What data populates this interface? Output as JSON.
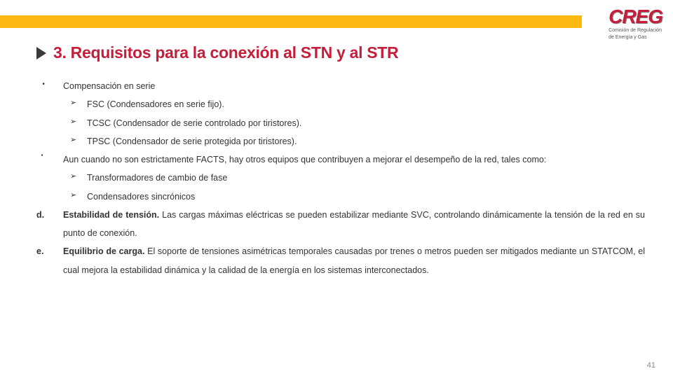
{
  "colors": {
    "accent": "#c41e3a",
    "bar": "#fdb813",
    "text": "#333333",
    "triangle": "#3a3a3a",
    "pagenum": "#888888"
  },
  "logo": {
    "main": "CREG",
    "sub1": "Comisión de Regulación",
    "sub2": "de Energía y Gas"
  },
  "title": "3. Requisitos para la conexión al STN y al STR",
  "items": {
    "b1": "Compensación en serie",
    "s1": "FSC (Condensadores en serie fijo).",
    "s2": "TCSC (Condensador de serie controlado por tiristores).",
    "s3": "TPSC (Condensador de serie protegida por tiristores).",
    "b2": "Aun cuando no son estrictamente FACTS, hay otros equipos que contribuyen a mejorar el desempeño de la red, tales como:",
    "s4": "Transformadores de cambio de fase",
    "s5": "Condensadores sincrónicos",
    "d_label": "d.",
    "d_bold": "Estabilidad de tensión.",
    "d_rest": " Las cargas máximas eléctricas se pueden estabilizar mediante SVC, controlando dinámicamente la tensión de la red en su punto de conexión.",
    "e_label": "e.",
    "e_bold": "Equilibrio de carga.",
    "e_rest": " El soporte de tensiones asimétricas temporales causadas por trenes o metros pueden ser mitigados mediante un STATCOM, el cual mejora la estabilidad dinámica y la calidad de la energía en los sistemas interconectados."
  },
  "page_number": "41"
}
